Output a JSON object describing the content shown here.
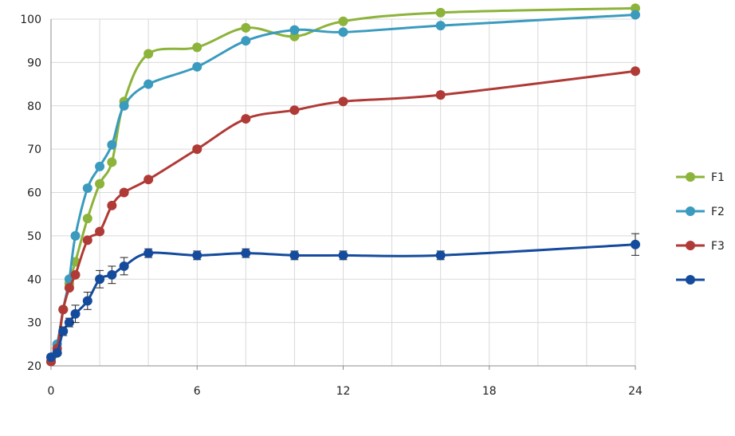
{
  "chart_data": {
    "type": "line",
    "title": "",
    "xlabel": "",
    "ylabel": "",
    "xlim": [
      0,
      24
    ],
    "ylim": [
      20,
      100
    ],
    "x_ticks": [
      0,
      6,
      12,
      18,
      24
    ],
    "y_ticks": [
      20,
      30,
      40,
      50,
      60,
      70,
      80,
      90,
      100
    ],
    "grid": true,
    "legend": "right",
    "series": [
      {
        "name": "F1",
        "color": "#8cb33a",
        "points": [
          [
            0,
            21
          ],
          [
            0.25,
            23
          ],
          [
            0.5,
            33
          ],
          [
            0.75,
            39
          ],
          [
            1,
            44
          ],
          [
            1.5,
            54
          ],
          [
            2,
            62
          ],
          [
            2.5,
            67
          ],
          [
            3,
            81
          ],
          [
            4,
            92
          ],
          [
            6,
            93.5
          ],
          [
            8,
            98
          ],
          [
            10,
            96
          ],
          [
            12,
            99.5
          ],
          [
            16,
            101.5
          ],
          [
            24,
            102.5
          ]
        ],
        "errors": []
      },
      {
        "name": "F2",
        "color": "#3a9bbe",
        "points": [
          [
            0,
            21
          ],
          [
            0.25,
            25
          ],
          [
            0.5,
            33
          ],
          [
            0.75,
            40
          ],
          [
            1,
            50
          ],
          [
            1.5,
            61
          ],
          [
            2,
            66
          ],
          [
            2.5,
            71
          ],
          [
            3,
            80
          ],
          [
            4,
            85
          ],
          [
            6,
            89
          ],
          [
            8,
            95
          ],
          [
            10,
            97.5
          ],
          [
            12,
            97
          ],
          [
            16,
            98.5
          ],
          [
            24,
            101
          ]
        ],
        "errors": []
      },
      {
        "name": "F3",
        "color": "#b03a36",
        "points": [
          [
            0,
            21
          ],
          [
            0.25,
            24
          ],
          [
            0.5,
            33
          ],
          [
            0.75,
            38
          ],
          [
            1,
            41
          ],
          [
            1.5,
            49
          ],
          [
            2,
            51
          ],
          [
            2.5,
            57
          ],
          [
            3,
            60
          ],
          [
            4,
            63
          ],
          [
            6,
            70
          ],
          [
            8,
            77
          ],
          [
            10,
            79
          ],
          [
            12,
            81
          ],
          [
            16,
            82.5
          ],
          [
            24,
            88
          ]
        ],
        "errors": []
      },
      {
        "color": "#154b9c",
        "points": [
          [
            0,
            22
          ],
          [
            0.25,
            23
          ],
          [
            0.5,
            28
          ],
          [
            0.75,
            30
          ],
          [
            1,
            32
          ],
          [
            1.5,
            35
          ],
          [
            2,
            40
          ],
          [
            2.5,
            41
          ],
          [
            3,
            43
          ],
          [
            4,
            46
          ],
          [
            6,
            45.5
          ],
          [
            8,
            46
          ],
          [
            10,
            45.5
          ],
          [
            12,
            45.5
          ],
          [
            16,
            45.5
          ],
          [
            24,
            48
          ]
        ],
        "errors": [
          0.5,
          0.5,
          1,
          1,
          2,
          2,
          2,
          2,
          2,
          1,
          1,
          1,
          1,
          1,
          1,
          2.5
        ]
      }
    ]
  }
}
